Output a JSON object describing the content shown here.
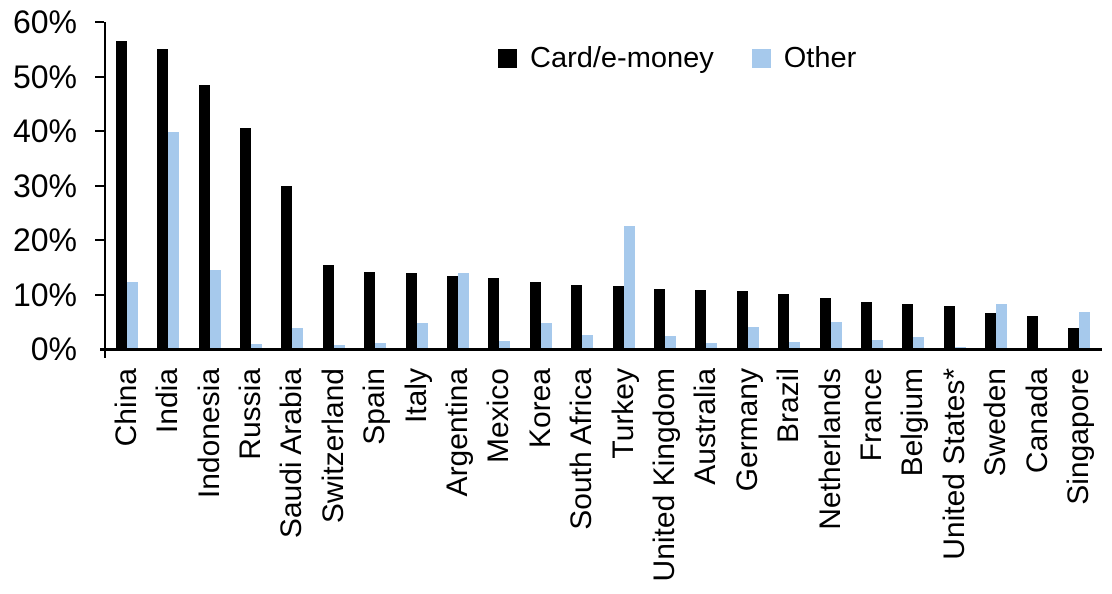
{
  "chart_data": {
    "type": "bar",
    "title": "",
    "xlabel": "",
    "ylabel": "",
    "ylim": [
      0,
      60
    ],
    "ytick_step": 10,
    "yticks": [
      "0%",
      "10%",
      "20%",
      "30%",
      "40%",
      "50%",
      "60%"
    ],
    "grid": false,
    "legend_position": "top-center",
    "categories": [
      "China",
      "India",
      "Indonesia",
      "Russia",
      "Saudi Arabia",
      "Switzerland",
      "Spain",
      "Italy",
      "Argentina",
      "Mexico",
      "Korea",
      "South Africa",
      "Turkey",
      "United Kingdom",
      "Australia",
      "Germany",
      "Brazil",
      "Netherlands",
      "France",
      "Belgium",
      "United States*",
      "Sweden",
      "Canada",
      "Singapore"
    ],
    "series": [
      {
        "name": "Card/e-money",
        "color": "#000000",
        "values": [
          56.5,
          55.0,
          48.4,
          40.6,
          29.9,
          15.5,
          14.1,
          14.0,
          13.4,
          13.0,
          12.3,
          11.8,
          11.6,
          11.1,
          10.8,
          10.6,
          10.1,
          9.3,
          8.7,
          8.2,
          7.9,
          6.6,
          6.0,
          3.9
        ]
      },
      {
        "name": "Other",
        "color": "#A6C9EC",
        "values": [
          12.3,
          39.8,
          14.5,
          1.0,
          3.9,
          0.8,
          1.1,
          4.7,
          13.9,
          1.4,
          4.7,
          2.5,
          22.6,
          2.4,
          1.1,
          4.0,
          1.2,
          4.9,
          1.6,
          2.2,
          0.3,
          8.2,
          0.0,
          6.7
        ]
      }
    ]
  }
}
